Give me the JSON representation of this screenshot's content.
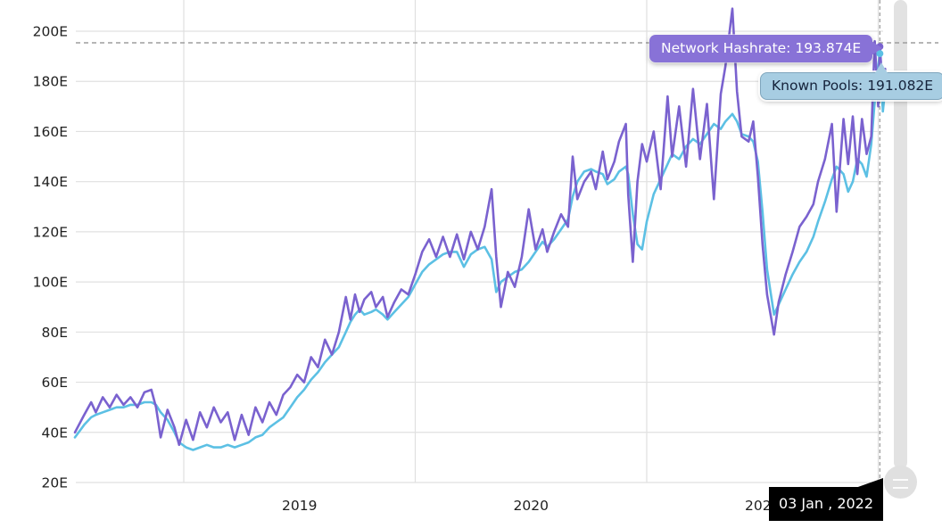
{
  "tooltips": {
    "network": "Network Hashrate: 193.874E",
    "pools": "Known Pools: 191.082E",
    "date_flag": "03 Jan , 2022"
  },
  "colors": {
    "network_line": "#7a62cf",
    "pools_line": "#5cc0e4",
    "network_tooltip_bg": "#8872d7",
    "network_tooltip_text": "#ffffff",
    "pools_tooltip_bg": "#a7cde2",
    "pools_tooltip_border": "#7fa6bd",
    "pools_tooltip_text": "#15233b",
    "date_flag_bg": "#000000",
    "date_flag_text": "#ffffff",
    "gridline": "#e0e0e0",
    "crosshair_dash": "#9e9e9e",
    "axis_text": "#1f1f1f",
    "slider": "#e2e2e2"
  },
  "chart_data": {
    "type": "line",
    "title": "",
    "xlabel": "",
    "ylabel": "",
    "unit_suffix": "E",
    "ylim": [
      20,
      200
    ],
    "grid": true,
    "legend_position": "none",
    "y_ticks": [
      {
        "value": 20,
        "label": "20E"
      },
      {
        "value": 40,
        "label": "40E"
      },
      {
        "value": 60,
        "label": "60E"
      },
      {
        "value": 80,
        "label": "80E"
      },
      {
        "value": 100,
        "label": "100E"
      },
      {
        "value": 120,
        "label": "120E"
      },
      {
        "value": 140,
        "label": "140E"
      },
      {
        "value": 160,
        "label": "160E"
      },
      {
        "value": 180,
        "label": "180E"
      },
      {
        "value": 200,
        "label": "200E"
      }
    ],
    "x_gridline_years": [
      2019,
      2020,
      2021,
      2022
    ],
    "x_year_labels": [
      {
        "year": 2019,
        "label": "2019"
      },
      {
        "year": 2020,
        "label": "2020"
      },
      {
        "year": 2021,
        "label": "2021"
      }
    ],
    "x": [
      2018.53,
      2018.57,
      2018.6,
      2018.62,
      2018.65,
      2018.68,
      2018.71,
      2018.74,
      2018.77,
      2018.8,
      2018.83,
      2018.86,
      2018.88,
      2018.9,
      2018.93,
      2018.96,
      2018.98,
      2019.01,
      2019.04,
      2019.07,
      2019.1,
      2019.13,
      2019.16,
      2019.19,
      2019.22,
      2019.25,
      2019.28,
      2019.31,
      2019.34,
      2019.37,
      2019.4,
      2019.43,
      2019.46,
      2019.49,
      2019.52,
      2019.55,
      2019.58,
      2019.61,
      2019.64,
      2019.67,
      2019.7,
      2019.72,
      2019.74,
      2019.76,
      2019.78,
      2019.81,
      2019.83,
      2019.86,
      2019.88,
      2019.91,
      2019.94,
      2019.97,
      2020.0,
      2020.03,
      2020.06,
      2020.09,
      2020.12,
      2020.15,
      2020.18,
      2020.21,
      2020.24,
      2020.27,
      2020.3,
      2020.33,
      2020.35,
      2020.37,
      2020.4,
      2020.43,
      2020.46,
      2020.49,
      2020.52,
      2020.55,
      2020.57,
      2020.6,
      2020.63,
      2020.66,
      2020.68,
      2020.7,
      2020.73,
      2020.76,
      2020.78,
      2020.81,
      2020.83,
      2020.86,
      2020.88,
      2020.91,
      2020.92,
      2020.94,
      2020.96,
      2020.98,
      2021.0,
      2021.03,
      2021.06,
      2021.09,
      2021.11,
      2021.14,
      2021.17,
      2021.2,
      2021.23,
      2021.26,
      2021.29,
      2021.32,
      2021.34,
      2021.37,
      2021.39,
      2021.41,
      2021.44,
      2021.46,
      2021.48,
      2021.5,
      2021.52,
      2021.55,
      2021.57,
      2021.6,
      2021.63,
      2021.66,
      2021.69,
      2021.72,
      2021.74,
      2021.77,
      2021.8,
      2021.82,
      2021.85,
      2021.87,
      2021.89,
      2021.91,
      2021.93,
      2021.95,
      2021.97,
      2021.985,
      2022.0,
      2022.007,
      2022.02,
      2022.03
    ],
    "series": [
      {
        "name": "Network Hashrate",
        "color": "#7a62cf",
        "values": [
          40,
          47,
          52,
          48,
          54,
          50,
          55,
          51,
          54,
          50,
          56,
          57,
          50,
          38,
          49,
          42,
          35,
          45,
          37,
          48,
          42,
          50,
          44,
          48,
          37,
          47,
          39,
          50,
          44,
          52,
          47,
          55,
          58,
          63,
          60,
          70,
          66,
          77,
          71,
          80,
          94,
          85,
          95,
          88,
          93,
          96,
          90,
          94,
          86,
          92,
          97,
          95,
          103,
          112,
          117,
          110,
          118,
          110,
          119,
          109,
          120,
          113,
          122,
          137,
          110,
          90,
          104,
          98,
          110,
          129,
          113,
          121,
          112,
          120,
          127,
          122,
          150,
          133,
          140,
          144,
          137,
          152,
          141,
          148,
          156,
          163,
          135,
          108,
          140,
          155,
          148,
          160,
          137,
          174,
          150,
          170,
          146,
          177,
          149,
          171,
          133,
          175,
          186,
          209,
          176,
          158,
          156,
          164,
          142,
          115,
          95,
          79,
          92,
          103,
          112,
          122,
          126,
          131,
          140,
          149,
          163,
          128,
          165,
          147,
          166,
          143,
          165,
          151,
          158,
          196,
          170,
          193.874,
          177,
          185
        ]
      },
      {
        "name": "Known Pools",
        "color": "#5cc0e4",
        "values": [
          38,
          43,
          46,
          47,
          48,
          49,
          50,
          50,
          51,
          51,
          52,
          52,
          51,
          48,
          45,
          40,
          36,
          34,
          33,
          34,
          35,
          34,
          34,
          35,
          34,
          35,
          36,
          38,
          39,
          42,
          44,
          46,
          50,
          54,
          57,
          61,
          64,
          68,
          71,
          74,
          80,
          84,
          87,
          89,
          87,
          88,
          89,
          87,
          85,
          88,
          91,
          94,
          99,
          104,
          107,
          109,
          111,
          112,
          112,
          106,
          111,
          113,
          114,
          109,
          96,
          100,
          102,
          104,
          105,
          108,
          112,
          116,
          114,
          117,
          121,
          125,
          134,
          140,
          144,
          145,
          144,
          143,
          139,
          141,
          144,
          146,
          143,
          127,
          115,
          113,
          124,
          135,
          141,
          147,
          151,
          149,
          154,
          157,
          155,
          159,
          163,
          161,
          164,
          167,
          164,
          159,
          158,
          156,
          148,
          128,
          105,
          87,
          91,
          97,
          103,
          108,
          112,
          118,
          124,
          132,
          141,
          146,
          143,
          136,
          140,
          149,
          147,
          142,
          155,
          172,
          186,
          191.082,
          168,
          177
        ]
      }
    ],
    "hover_point": {
      "x": 2022.007,
      "date": "03 Jan , 2022",
      "network_hashrate": 193.874,
      "known_pools": 191.082
    }
  }
}
